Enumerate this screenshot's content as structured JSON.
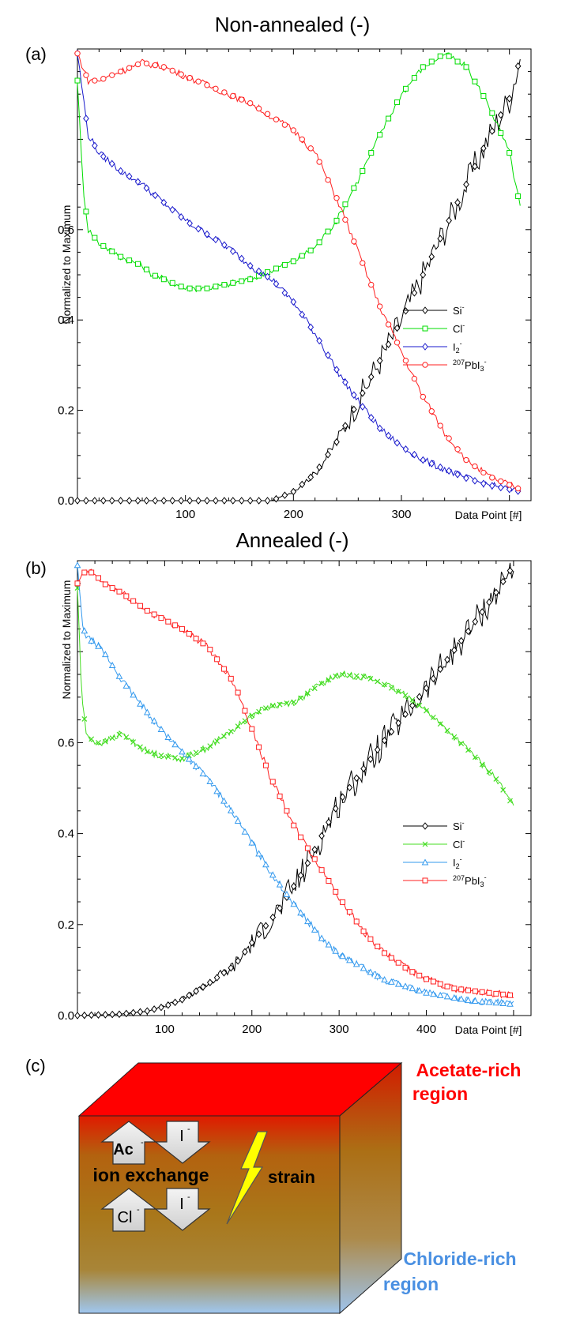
{
  "chart_data": [
    {
      "type": "line",
      "panel": "(a)",
      "title": "Non-annealed (-)",
      "xlabel": "Data Point [#]",
      "ylabel": "Normalized to Maximum",
      "xlim": [
        0,
        420
      ],
      "ylim": [
        0,
        1.0
      ],
      "xticks": [
        100,
        200,
        300
      ],
      "xtick_labels": [
        "100",
        "200",
        "300"
      ],
      "yticks": [
        0.0,
        0.2,
        0.4,
        0.6
      ],
      "ytick_labels": [
        "0.0",
        "0.2",
        "0.4",
        "0.6"
      ],
      "legend_position": "center-right",
      "series": [
        {
          "name": "Si",
          "legend_label": "Si",
          "legend_sup": "-",
          "legend_pre": "",
          "color": "#000000",
          "marker": "diamond",
          "x": [
            0,
            20,
            50,
            100,
            150,
            180,
            200,
            220,
            240,
            260,
            280,
            300,
            320,
            340,
            360,
            380,
            400,
            410
          ],
          "y": [
            0,
            0,
            0,
            0,
            0,
            0,
            0.02,
            0.06,
            0.13,
            0.22,
            0.31,
            0.4,
            0.5,
            0.6,
            0.7,
            0.8,
            0.89,
            0.98
          ]
        },
        {
          "name": "Cl",
          "legend_label": "Cl",
          "legend_sup": "-",
          "legend_pre": "",
          "color": "#00dd00",
          "marker": "square",
          "x": [
            0,
            5,
            10,
            20,
            40,
            60,
            70,
            80,
            100,
            120,
            140,
            160,
            180,
            200,
            220,
            240,
            260,
            280,
            300,
            320,
            340,
            360,
            380,
            400,
            410
          ],
          "y": [
            0.93,
            0.7,
            0.6,
            0.57,
            0.54,
            0.52,
            0.5,
            0.49,
            0.47,
            0.47,
            0.48,
            0.49,
            0.51,
            0.53,
            0.56,
            0.62,
            0.71,
            0.81,
            0.9,
            0.96,
            0.99,
            0.96,
            0.88,
            0.77,
            0.65
          ]
        },
        {
          "name": "I2",
          "legend_label": "I",
          "legend_sub": "2",
          "legend_sup": "-",
          "legend_pre": "",
          "color": "#1a1acc",
          "marker": "diamond",
          "x": [
            0,
            5,
            10,
            20,
            40,
            60,
            80,
            100,
            120,
            140,
            160,
            180,
            200,
            220,
            240,
            260,
            280,
            300,
            320,
            340,
            360,
            380,
            400,
            410
          ],
          "y": [
            0.99,
            0.9,
            0.81,
            0.77,
            0.73,
            0.7,
            0.66,
            0.62,
            0.59,
            0.56,
            0.52,
            0.49,
            0.44,
            0.37,
            0.29,
            0.22,
            0.16,
            0.12,
            0.09,
            0.07,
            0.05,
            0.035,
            0.025,
            0.02
          ]
        },
        {
          "name": "207PbI3",
          "legend_label": "PbI",
          "legend_sub": "3",
          "legend_sup": "-",
          "legend_pre": "207",
          "color": "#ff2020",
          "marker": "circle",
          "x": [
            0,
            10,
            20,
            40,
            60,
            80,
            100,
            120,
            140,
            160,
            180,
            200,
            220,
            240,
            260,
            280,
            300,
            320,
            340,
            360,
            380,
            400,
            410
          ],
          "y": [
            0.99,
            0.93,
            0.93,
            0.95,
            0.97,
            0.96,
            0.94,
            0.92,
            0.9,
            0.88,
            0.85,
            0.82,
            0.77,
            0.67,
            0.55,
            0.43,
            0.33,
            0.23,
            0.15,
            0.09,
            0.055,
            0.035,
            0.025
          ]
        }
      ]
    },
    {
      "type": "line",
      "panel": "(b)",
      "title": "Annealed (-)",
      "xlabel": "Data Point [#]",
      "ylabel": "Normalized to Maximum",
      "xlim": [
        0,
        520
      ],
      "ylim": [
        0,
        1.0
      ],
      "xticks": [
        100,
        200,
        300,
        400
      ],
      "xtick_labels": [
        "100",
        "200",
        "300",
        "400"
      ],
      "yticks": [
        0.0,
        0.2,
        0.4,
        0.6
      ],
      "ytick_labels": [
        "0.0",
        "0.2",
        "0.4",
        "0.6"
      ],
      "legend_position": "center-right",
      "series": [
        {
          "name": "Si",
          "legend_label": "Si",
          "legend_sup": "-",
          "legend_pre": "",
          "color": "#000000",
          "marker": "diamond",
          "x": [
            0,
            50,
            80,
            100,
            120,
            150,
            180,
            200,
            230,
            260,
            300,
            350,
            400,
            450,
            480,
            500
          ],
          "y": [
            0,
            0.003,
            0.01,
            0.02,
            0.035,
            0.07,
            0.11,
            0.16,
            0.23,
            0.32,
            0.47,
            0.6,
            0.72,
            0.85,
            0.93,
            0.99
          ]
        },
        {
          "name": "Cl",
          "legend_label": "Cl",
          "legend_sup": "-",
          "legend_pre": "",
          "color": "#44dd22",
          "marker": "cross",
          "x": [
            0,
            5,
            10,
            20,
            30,
            50,
            80,
            100,
            120,
            150,
            180,
            200,
            220,
            250,
            280,
            300,
            330,
            350,
            380,
            400,
            450,
            480,
            500
          ],
          "y": [
            0.94,
            0.7,
            0.62,
            0.6,
            0.6,
            0.62,
            0.58,
            0.57,
            0.565,
            0.59,
            0.63,
            0.66,
            0.68,
            0.69,
            0.73,
            0.75,
            0.745,
            0.73,
            0.7,
            0.67,
            0.58,
            0.52,
            0.46
          ]
        },
        {
          "name": "I2",
          "legend_label": "I",
          "legend_sub": "2",
          "legend_sup": "-",
          "legend_pre": "",
          "color": "#3399ee",
          "marker": "triangle",
          "x": [
            0,
            5,
            10,
            20,
            30,
            50,
            70,
            100,
            130,
            150,
            180,
            200,
            220,
            250,
            280,
            300,
            350,
            400,
            450,
            500
          ],
          "y": [
            0.99,
            0.87,
            0.83,
            0.82,
            0.8,
            0.74,
            0.69,
            0.62,
            0.56,
            0.52,
            0.44,
            0.38,
            0.32,
            0.24,
            0.17,
            0.135,
            0.08,
            0.05,
            0.033,
            0.025
          ]
        },
        {
          "name": "207PbI3",
          "legend_label": "PbI",
          "legend_sub": "3",
          "legend_sup": "-",
          "legend_pre": "207",
          "color": "#ff2020",
          "marker": "square",
          "x": [
            0,
            10,
            20,
            30,
            50,
            80,
            100,
            120,
            150,
            180,
            200,
            220,
            250,
            280,
            300,
            330,
            350,
            380,
            400,
            430,
            450,
            480,
            500
          ],
          "y": [
            0.95,
            0.98,
            0.97,
            0.95,
            0.93,
            0.89,
            0.87,
            0.85,
            0.81,
            0.73,
            0.63,
            0.53,
            0.41,
            0.32,
            0.26,
            0.18,
            0.14,
            0.1,
            0.08,
            0.06,
            0.055,
            0.048,
            0.044
          ]
        }
      ]
    }
  ],
  "schematic": {
    "panel": "(c)",
    "acetate_label_line1": "Acetate-rich",
    "acetate_label_line2": "region",
    "chloride_label_line1": "Chloride-rich",
    "chloride_label_line2": "region",
    "arrow_ac": "Ac",
    "arrow_ac_sup": "-",
    "arrow_i_top": "I",
    "arrow_i_top_sup": "-",
    "arrow_cl": "Cl",
    "arrow_cl_sup": "-",
    "arrow_i_bottom": "I",
    "arrow_i_bottom_sup": "-",
    "ion_exchange_label": "ion exchange",
    "strain_label": "strain",
    "acetate_color": "#ff0000",
    "chloride_color": "#4a90e2"
  }
}
